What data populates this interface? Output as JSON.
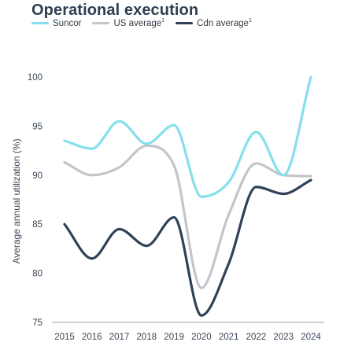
{
  "header": {
    "title": "Operational execution"
  },
  "legend": [
    {
      "label": "Suncor",
      "sup": "",
      "color": "#84e0ec"
    },
    {
      "label": "US average",
      "sup": "1",
      "color": "#c3c5c8"
    },
    {
      "label": "Cdn average",
      "sup": "1",
      "color": "#2f4257"
    }
  ],
  "chart_data": {
    "type": "line",
    "title": "Operational execution",
    "xlabel": "",
    "ylabel": "Average annual utilization  (%)",
    "x": [
      "2015",
      "2016",
      "2017",
      "2018",
      "2019",
      "2020",
      "2021",
      "2022",
      "2023",
      "2024"
    ],
    "ylim": [
      75,
      100
    ],
    "yticks": [
      75,
      80,
      85,
      90,
      95,
      100
    ],
    "grid": false,
    "legend_position": "top-left",
    "series": [
      {
        "name": "Suncor",
        "color": "#84e0ec",
        "values": [
          93.5,
          92.7,
          95.5,
          93.2,
          95.1,
          87.8,
          89.3,
          94.4,
          90.0,
          100.0
        ]
      },
      {
        "name": "US average",
        "color": "#c3c5c8",
        "values": [
          91.3,
          90.0,
          90.8,
          93.0,
          91.0,
          78.5,
          86.0,
          91.2,
          90.0,
          89.9
        ]
      },
      {
        "name": "Cdn average",
        "color": "#2f4257",
        "values": [
          85.0,
          81.5,
          84.5,
          82.8,
          85.7,
          75.7,
          81.0,
          88.8,
          88.1,
          89.5
        ]
      }
    ]
  }
}
